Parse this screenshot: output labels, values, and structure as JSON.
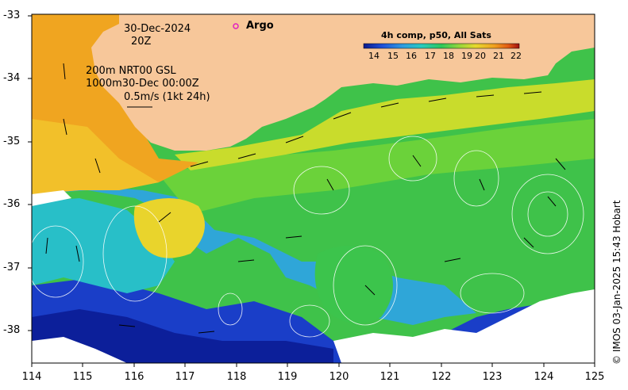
{
  "annotations": {
    "date": "30-Dec-2024",
    "time": "20Z",
    "model_line1": "200m  NRT00 GSL",
    "model_line2": "1000m30-Dec 00:00Z",
    "scale_text": "0.5m/s (1kt 24h)",
    "argo": "Argo"
  },
  "colorbar": {
    "title": "4h comp, p50, All Sats",
    "ticks": [
      "14",
      "15",
      "16",
      "17",
      "18",
      "19",
      "20",
      "21",
      "22"
    ],
    "colors": [
      "#0a1a8c",
      "#1f4fd8",
      "#2f9be0",
      "#28c9c0",
      "#2ec85a",
      "#9ad63a",
      "#e6d82e",
      "#f0a020",
      "#e05a14",
      "#a01010"
    ]
  },
  "axes": {
    "lat_ticks": [
      "-33",
      "-34",
      "-35",
      "-36",
      "-37",
      "-38"
    ],
    "lon_ticks": [
      "114",
      "115",
      "116",
      "117",
      "118",
      "119",
      "120",
      "121",
      "122",
      "123",
      "124",
      "125"
    ]
  },
  "credit": "© IMOS 03-Jan-2025 15:43 Hobart",
  "colors": {
    "land": "#f7c79a",
    "frame": "#000000",
    "contour": "#ffffff"
  }
}
